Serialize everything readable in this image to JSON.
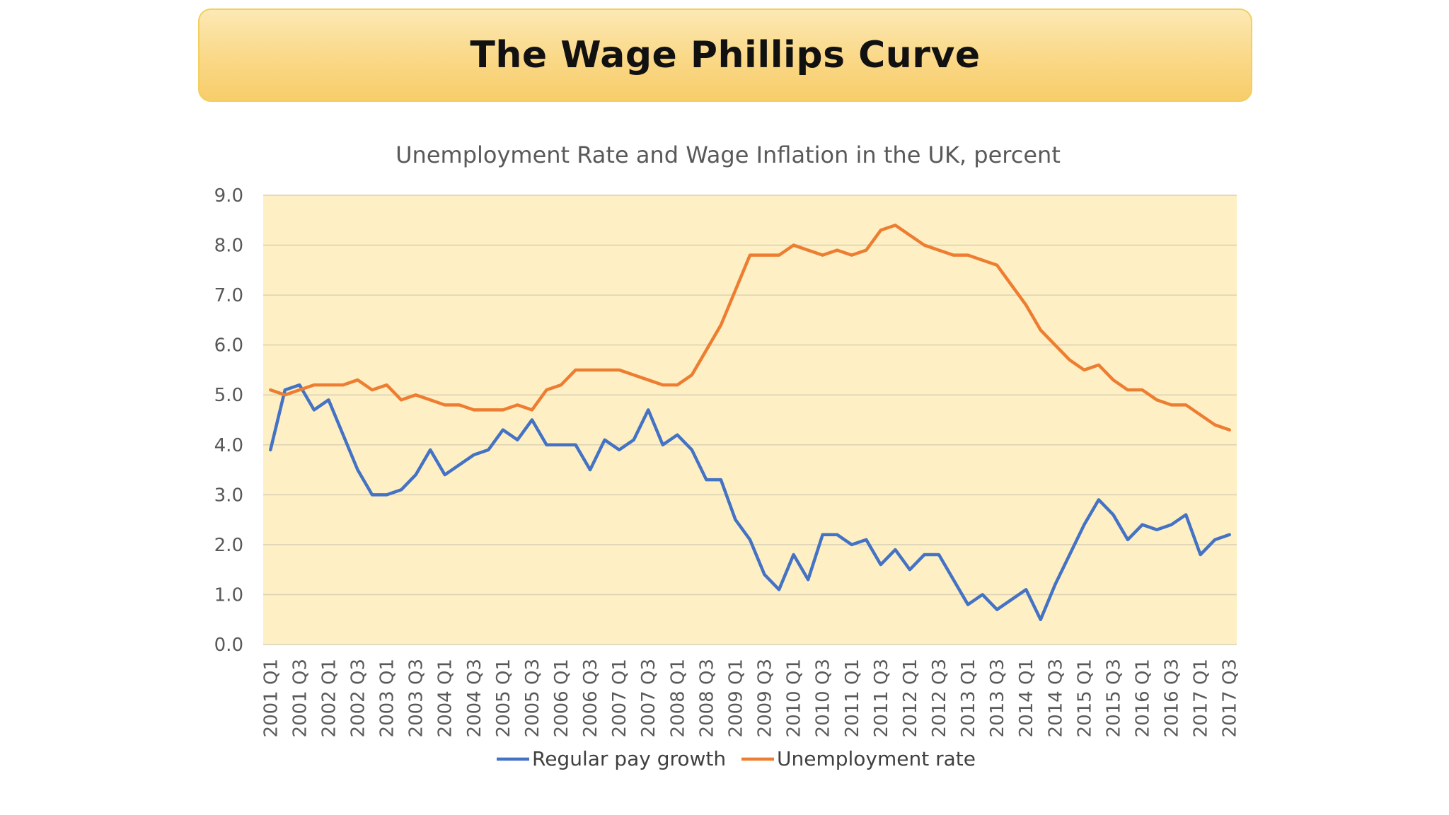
{
  "slide": {
    "title": "The Wage Phillips Curve"
  },
  "colors": {
    "plot_background": "#fef0c4",
    "gridline": "#d9d2b4",
    "pay_growth": "#4472c4",
    "unemployment": "#ed7d31"
  },
  "chart_data": {
    "type": "line",
    "title": "Unemployment Rate and Wage Inflation in the UK, percent",
    "xlabel": "",
    "ylabel": "",
    "ylim": [
      0,
      9
    ],
    "yticks": [
      "0.0",
      "1.0",
      "2.0",
      "3.0",
      "4.0",
      "5.0",
      "6.0",
      "7.0",
      "8.0",
      "9.0"
    ],
    "grid": true,
    "legend": "bottom",
    "x": [
      "2001 Q1",
      "2001 Q2",
      "2001 Q3",
      "2001 Q4",
      "2002 Q1",
      "2002 Q2",
      "2002 Q3",
      "2002 Q4",
      "2003 Q1",
      "2003 Q2",
      "2003 Q3",
      "2003 Q4",
      "2004 Q1",
      "2004 Q2",
      "2004 Q3",
      "2004 Q4",
      "2005 Q1",
      "2005 Q2",
      "2005 Q3",
      "2005 Q4",
      "2006 Q1",
      "2006 Q2",
      "2006 Q3",
      "2006 Q4",
      "2007 Q1",
      "2007 Q2",
      "2007 Q3",
      "2007 Q4",
      "2008 Q1",
      "2008 Q2",
      "2008 Q3",
      "2008 Q4",
      "2009 Q1",
      "2009 Q2",
      "2009 Q3",
      "2009 Q4",
      "2010 Q1",
      "2010 Q2",
      "2010 Q3",
      "2010 Q4",
      "2011 Q1",
      "2011 Q2",
      "2011 Q3",
      "2011 Q4",
      "2012 Q1",
      "2012 Q2",
      "2012 Q3",
      "2012 Q4",
      "2013 Q1",
      "2013 Q2",
      "2013 Q3",
      "2013 Q4",
      "2014 Q1",
      "2014 Q2",
      "2014 Q3",
      "2014 Q4",
      "2015 Q1",
      "2015 Q2",
      "2015 Q3",
      "2015 Q4",
      "2016 Q1",
      "2016 Q2",
      "2016 Q3",
      "2016 Q4",
      "2017 Q1",
      "2017 Q2",
      "2017 Q3"
    ],
    "xtick_labels": [
      "2001 Q1",
      "2001 Q3",
      "2002 Q1",
      "2002 Q3",
      "2003 Q1",
      "2003 Q3",
      "2004 Q1",
      "2004 Q3",
      "2005 Q1",
      "2005 Q3",
      "2006 Q1",
      "2006 Q3",
      "2007 Q1",
      "2007 Q3",
      "2008 Q1",
      "2008 Q3",
      "2009 Q1",
      "2009 Q3",
      "2010 Q1",
      "2010 Q3",
      "2011 Q1",
      "2011 Q3",
      "2012 Q1",
      "2012 Q3",
      "2013 Q1",
      "2013 Q3",
      "2014 Q1",
      "2014 Q3",
      "2015 Q1",
      "2015 Q3",
      "2016 Q1",
      "2016 Q3",
      "2017 Q1",
      "2017 Q3"
    ],
    "series": [
      {
        "name": "Regular pay growth",
        "color": "#4472c4",
        "values": [
          3.9,
          5.1,
          5.2,
          4.7,
          4.9,
          4.2,
          3.5,
          3.0,
          3.0,
          3.1,
          3.4,
          3.9,
          3.4,
          3.6,
          3.8,
          3.9,
          4.3,
          4.1,
          4.5,
          4.0,
          4.0,
          4.0,
          3.5,
          4.1,
          3.9,
          4.1,
          4.7,
          4.0,
          4.2,
          3.9,
          3.3,
          3.3,
          2.5,
          2.1,
          1.4,
          1.1,
          1.8,
          1.3,
          2.2,
          2.2,
          2.0,
          2.1,
          1.6,
          1.9,
          1.5,
          1.8,
          1.8,
          1.3,
          0.8,
          1.0,
          0.7,
          0.9,
          1.1,
          0.5,
          1.2,
          1.8,
          2.4,
          2.9,
          2.6,
          2.1,
          2.4,
          2.3,
          2.4,
          2.6,
          1.8,
          2.1,
          2.2
        ]
      },
      {
        "name": "Unemployment rate",
        "color": "#ed7d31",
        "values": [
          5.1,
          5.0,
          5.1,
          5.2,
          5.2,
          5.2,
          5.3,
          5.1,
          5.2,
          4.9,
          5.0,
          4.9,
          4.8,
          4.8,
          4.7,
          4.7,
          4.7,
          4.8,
          4.7,
          5.1,
          5.2,
          5.5,
          5.5,
          5.5,
          5.5,
          5.4,
          5.3,
          5.2,
          5.2,
          5.4,
          5.9,
          6.4,
          7.1,
          7.8,
          7.8,
          7.8,
          8.0,
          7.9,
          7.8,
          7.9,
          7.8,
          7.9,
          8.3,
          8.4,
          8.2,
          8.0,
          7.9,
          7.8,
          7.8,
          7.7,
          7.6,
          7.2,
          6.8,
          6.3,
          6.0,
          5.7,
          5.5,
          5.6,
          5.3,
          5.1,
          5.1,
          4.9,
          4.8,
          4.8,
          4.6,
          4.4,
          4.3
        ]
      }
    ]
  }
}
